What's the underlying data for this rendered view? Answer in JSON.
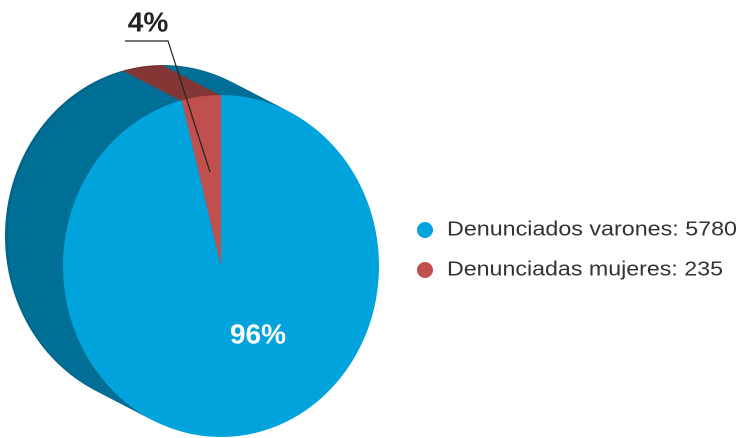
{
  "chart_data": {
    "type": "pie",
    "series": [
      {
        "name": "Denunciados varones: 5780",
        "color": "#00a3dc",
        "values": [
          96
        ],
        "value_labels": [
          "96%"
        ]
      },
      {
        "name": "Denunciadas mujeres: 235",
        "color": "#c0504d",
        "values": [
          4
        ],
        "value_labels": [
          "4%"
        ]
      }
    ]
  }
}
